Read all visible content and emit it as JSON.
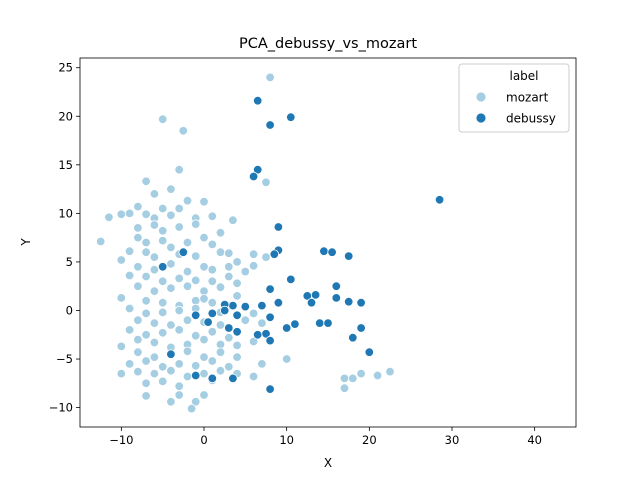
{
  "chart_data": {
    "type": "scatter",
    "title": "PCA_debussy_vs_mozart",
    "xlabel": "X",
    "ylabel": "Y",
    "xlim": [
      -15,
      45
    ],
    "ylim": [
      -12,
      26
    ],
    "xticks": [
      -10,
      0,
      10,
      20,
      30,
      40
    ],
    "yticks": [
      -10,
      -5,
      0,
      5,
      10,
      15,
      20,
      25
    ],
    "grid": false,
    "legend": {
      "title": "label",
      "placement": "top-right"
    },
    "series": [
      {
        "name": "mozart",
        "color": "#a6cee3",
        "points": [
          [
            8,
            24
          ],
          [
            -5,
            19.7
          ],
          [
            -2.5,
            18.5
          ],
          [
            -3,
            14.5
          ],
          [
            -7,
            13.3
          ],
          [
            7.5,
            13.2
          ],
          [
            -4,
            12.5
          ],
          [
            -6,
            12
          ],
          [
            -2,
            11.3
          ],
          [
            0,
            11.2
          ],
          [
            -8,
            10.7
          ],
          [
            -5,
            10.5
          ],
          [
            -3,
            10.5
          ],
          [
            -11.5,
            9.6
          ],
          [
            -10,
            9.9
          ],
          [
            -9,
            10
          ],
          [
            -7,
            9.9
          ],
          [
            -6,
            9.5
          ],
          [
            -4,
            9.8
          ],
          [
            -1,
            9.5
          ],
          [
            1,
            9.7
          ],
          [
            3.5,
            9.3
          ],
          [
            -8,
            8.5
          ],
          [
            -6,
            8.8
          ],
          [
            -5,
            8.2
          ],
          [
            -3,
            8.6
          ],
          [
            -1,
            8.9
          ],
          [
            2,
            8
          ],
          [
            -8,
            7.5
          ],
          [
            -7,
            7
          ],
          [
            -5,
            7.2
          ],
          [
            -4,
            6.5
          ],
          [
            -2,
            7
          ],
          [
            0,
            7.5
          ],
          [
            1,
            6.8
          ],
          [
            -12.5,
            7.1
          ],
          [
            -9,
            6.1
          ],
          [
            -7,
            6
          ],
          [
            -6,
            5.5
          ],
          [
            -3,
            5.8
          ],
          [
            -1,
            5.6
          ],
          [
            2,
            6
          ],
          [
            3,
            5.9
          ],
          [
            4,
            5
          ],
          [
            6,
            5.8
          ],
          [
            7.5,
            5.5
          ],
          [
            -10,
            5.2
          ],
          [
            -8,
            4.5
          ],
          [
            -6,
            4.2
          ],
          [
            -4,
            4.8
          ],
          [
            -2,
            4
          ],
          [
            0,
            4.5
          ],
          [
            1,
            4.2
          ],
          [
            3,
            4.5
          ],
          [
            5,
            4
          ],
          [
            6,
            4.6
          ],
          [
            -9,
            3.6
          ],
          [
            -7,
            3.5
          ],
          [
            -5,
            3
          ],
          [
            -3,
            3.3
          ],
          [
            -1,
            3.1
          ],
          [
            1,
            3
          ],
          [
            3,
            3.5
          ],
          [
            4,
            2.8
          ],
          [
            -8,
            2.5
          ],
          [
            -6,
            2
          ],
          [
            -4,
            2.3
          ],
          [
            -2,
            2.5
          ],
          [
            0,
            2
          ],
          [
            2,
            2.4
          ],
          [
            4,
            1.5
          ],
          [
            -10,
            1.3
          ],
          [
            -7,
            1
          ],
          [
            -5,
            0.8
          ],
          [
            -3,
            0.5
          ],
          [
            -1,
            1
          ],
          [
            0,
            1.2
          ],
          [
            1,
            0.8
          ],
          [
            3,
            0.5
          ],
          [
            -9,
            0.2
          ],
          [
            -7,
            -0.3
          ],
          [
            -5,
            -0.2
          ],
          [
            -3,
            0
          ],
          [
            -1,
            0.2
          ],
          [
            2,
            -0.2
          ],
          [
            4,
            -0.5
          ],
          [
            6,
            -0.3
          ],
          [
            -8,
            -1
          ],
          [
            -6,
            -1.3
          ],
          [
            -4,
            -1.5
          ],
          [
            -2,
            -1
          ],
          [
            0,
            -1.2
          ],
          [
            2,
            -1.5
          ],
          [
            5,
            -1
          ],
          [
            7,
            -1.3
          ],
          [
            -9,
            -2
          ],
          [
            -7,
            -2.5
          ],
          [
            -5,
            -2.3
          ],
          [
            -3,
            -2
          ],
          [
            -1,
            -2.6
          ],
          [
            1,
            -2.2
          ],
          [
            3,
            -2.8
          ],
          [
            -8,
            -3
          ],
          [
            -6,
            -3.3
          ],
          [
            -4,
            -3.8
          ],
          [
            -2,
            -3.5
          ],
          [
            0,
            -3
          ],
          [
            2,
            -3.5
          ],
          [
            4,
            -3.6
          ],
          [
            6,
            -3.2
          ],
          [
            -10,
            -3.7
          ],
          [
            -8,
            -4.3
          ],
          [
            -6,
            -4.8
          ],
          [
            -4,
            -4.5
          ],
          [
            -2,
            -4.2
          ],
          [
            0,
            -4.8
          ],
          [
            2,
            -4.3
          ],
          [
            4,
            -4.8
          ],
          [
            -9,
            -5.5
          ],
          [
            -7,
            -5.2
          ],
          [
            -5,
            -5.8
          ],
          [
            -3,
            -5.5
          ],
          [
            -1,
            -5.7
          ],
          [
            1,
            -5.2
          ],
          [
            3,
            -5.8
          ],
          [
            7,
            -5.5
          ],
          [
            10,
            -5
          ],
          [
            -10,
            -6.5
          ],
          [
            -8,
            -6.3
          ],
          [
            -6,
            -6.5
          ],
          [
            -4,
            -6.2
          ],
          [
            -2,
            -6.8
          ],
          [
            0,
            -6.5
          ],
          [
            2,
            -6.2
          ],
          [
            4,
            -6.5
          ],
          [
            6,
            -6.8
          ],
          [
            -7,
            -7.5
          ],
          [
            -5,
            -7.3
          ],
          [
            -3,
            -7.8
          ],
          [
            1,
            -7.2
          ],
          [
            -7,
            -8.8
          ],
          [
            -4,
            -9.4
          ],
          [
            -3,
            -8.7
          ],
          [
            -1,
            -9.4
          ],
          [
            -1.5,
            -10.1
          ],
          [
            0,
            -8.7
          ],
          [
            17,
            -7
          ],
          [
            18,
            -7
          ],
          [
            17,
            -8
          ],
          [
            19,
            -6.5
          ],
          [
            21,
            -6.7
          ],
          [
            22.5,
            -6.3
          ]
        ]
      },
      {
        "name": "debussy",
        "color": "#1f78b4",
        "points": [
          [
            28.5,
            11.4
          ],
          [
            6.5,
            21.6
          ],
          [
            10.5,
            19.9
          ],
          [
            8,
            19.1
          ],
          [
            6.5,
            14.5
          ],
          [
            6,
            13.8
          ],
          [
            9,
            8.6
          ],
          [
            9,
            6.2
          ],
          [
            8.5,
            5.8
          ],
          [
            -2.5,
            6
          ],
          [
            10.5,
            3.2
          ],
          [
            14.5,
            6.1
          ],
          [
            15.5,
            6
          ],
          [
            17.5,
            5.6
          ],
          [
            -5,
            4.5
          ],
          [
            16,
            2.5
          ],
          [
            8,
            2.2
          ],
          [
            12.5,
            1.5
          ],
          [
            13.5,
            1.6
          ],
          [
            16,
            1.3
          ],
          [
            17.5,
            0.9
          ],
          [
            19,
            0.8
          ],
          [
            13,
            0.8
          ],
          [
            9,
            0.8
          ],
          [
            7,
            0.5
          ],
          [
            3.5,
            0.5
          ],
          [
            5,
            0.4
          ],
          [
            2.5,
            0.6
          ],
          [
            2.5,
            0
          ],
          [
            -1,
            -0.5
          ],
          [
            1,
            -0.3
          ],
          [
            4,
            -0.5
          ],
          [
            8,
            -0.7
          ],
          [
            11,
            -1.4
          ],
          [
            14,
            -1.3
          ],
          [
            15,
            -1.3
          ],
          [
            10,
            -1.8
          ],
          [
            19,
            -1.8
          ],
          [
            0.5,
            -1.2
          ],
          [
            3,
            -1.8
          ],
          [
            4,
            -2.2
          ],
          [
            6.5,
            -2.5
          ],
          [
            7.5,
            -2.4
          ],
          [
            8,
            -3.1
          ],
          [
            18,
            -2.8
          ],
          [
            20,
            -4.3
          ],
          [
            -1,
            -6.7
          ],
          [
            1,
            -7
          ],
          [
            3.5,
            -7
          ],
          [
            8,
            -8.1
          ],
          [
            -4,
            -4.5
          ]
        ]
      }
    ]
  }
}
